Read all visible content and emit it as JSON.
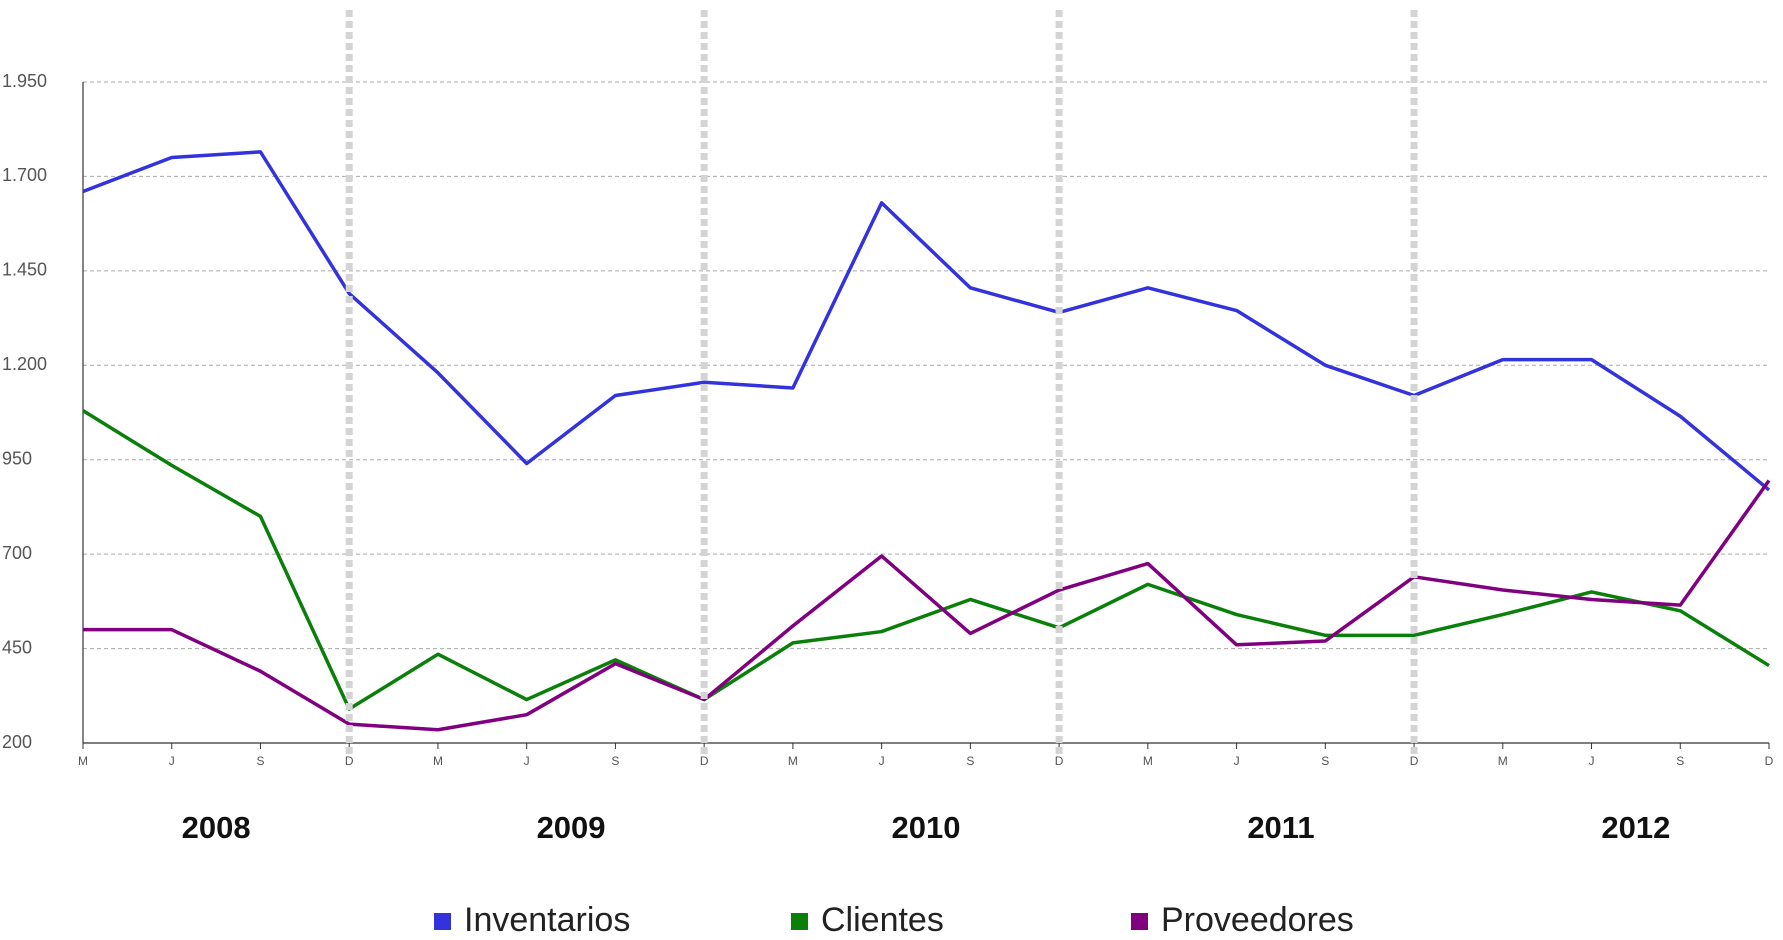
{
  "chart_data": {
    "type": "line",
    "categories": [
      "M",
      "J",
      "S",
      "D",
      "M",
      "J",
      "S",
      "D",
      "M",
      "J",
      "S",
      "D",
      "M",
      "J",
      "S",
      "D",
      "M",
      "J",
      "S",
      "D"
    ],
    "groups": [
      "2008",
      "2009",
      "2010",
      "2011",
      "2012"
    ],
    "series": [
      {
        "name": "Inventarios",
        "color": "#3333dd",
        "values": [
          1660,
          1750,
          1765,
          1390,
          1180,
          940,
          1120,
          1155,
          1140,
          1630,
          1405,
          1340,
          1405,
          1345,
          1200,
          1120,
          1215,
          1215,
          1065,
          870
        ]
      },
      {
        "name": "Clientes",
        "color": "#0a800a",
        "values": [
          1080,
          935,
          800,
          290,
          435,
          315,
          420,
          315,
          465,
          495,
          580,
          505,
          620,
          540,
          485,
          485,
          540,
          600,
          550,
          405
        ]
      },
      {
        "name": "Proveedores",
        "color": "#800080",
        "values": [
          500,
          500,
          390,
          250,
          235,
          275,
          410,
          315,
          510,
          695,
          490,
          605,
          675,
          460,
          470,
          640,
          605,
          580,
          565,
          895
        ]
      }
    ],
    "ylim": [
      200,
      1950
    ],
    "yticks": [
      200,
      450,
      700,
      950,
      {
        "value": 1200,
        "label": "1.200"
      },
      {
        "value": 1450,
        "label": "1.450"
      },
      {
        "value": 1700,
        "label": "1.700"
      },
      {
        "value": 1950,
        "label": "1.950"
      }
    ],
    "grid": true
  }
}
